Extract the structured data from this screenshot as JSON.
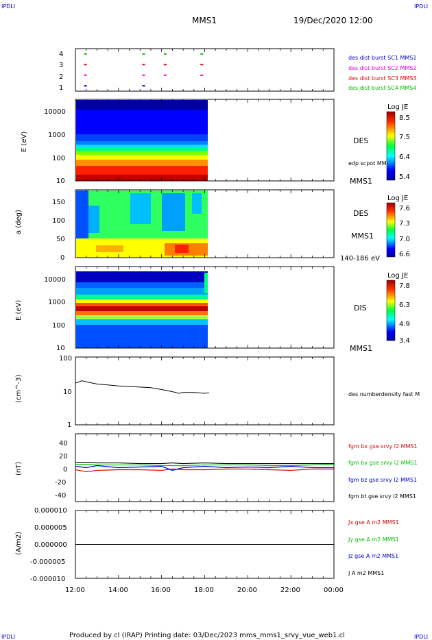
{
  "corner_labels": {
    "top_left": "IPDLI",
    "top_right": "IPDLI",
    "bottom_left": "IPDLI",
    "bottom_right": "IPDLI"
  },
  "header": {
    "spacecraft": "MMS1",
    "date_time": "19/Dec/2020 12:00"
  },
  "footer": "Produced by cl (IRAP)   Printing date: 03/Dec/2023   mms_mms1_srvy_vue_web1.cl",
  "colors": {
    "blue": "#0000dd",
    "magenta": "#dd00dd",
    "red": "#dd0000",
    "green": "#00bb00",
    "black": "#000000"
  },
  "chart_data": [
    {
      "type": "scatter",
      "title": "",
      "yticks": [
        "1",
        "2",
        "3",
        "4"
      ],
      "ylim": [
        0.5,
        4.5
      ],
      "legend": [
        "des dist burst SC1 MMS1",
        "des dist burst SC2 MMS2",
        "des dist burst SC3 MMS3",
        "des dist burst SC4 MMS4"
      ],
      "series": [
        {
          "name": "des dist burst SC1 MMS1",
          "y": 1,
          "x_hours": [
            12.4,
            15.1
          ]
        },
        {
          "name": "des dist burst SC2 MMS2",
          "y": 2,
          "x_hours": [
            12.4,
            15.1,
            16.1,
            17.8
          ]
        },
        {
          "name": "des dist burst SC3 MMS3",
          "y": 3,
          "x_hours": [
            12.4,
            15.1,
            16.1,
            17.8
          ]
        },
        {
          "name": "des dist burst SC4 MMS4",
          "y": 4,
          "x_hours": [
            12.4,
            15.1,
            16.1,
            17.8
          ]
        }
      ]
    },
    {
      "type": "heatmap",
      "ylabel": "E (eV)",
      "ylim": [
        10,
        30000
      ],
      "yscale": "log",
      "yticks": [
        "10",
        "100",
        "1000",
        "10000"
      ],
      "data_end_hour": 18.2,
      "right_labels": [
        "DES",
        "edp scpot MMS1",
        "MMS1"
      ],
      "colorbar": {
        "title": "Log JE",
        "ticks": [
          "8.5",
          "7.5",
          "6.4",
          "5.4"
        ]
      }
    },
    {
      "type": "heatmap",
      "ylabel": "a (deg)",
      "ylim": [
        0,
        180
      ],
      "yticks": [
        "0",
        "50",
        "100",
        "150"
      ],
      "data_end_hour": 18.2,
      "right_labels": [
        "DES",
        "MMS1",
        "140-186 eV"
      ],
      "colorbar": {
        "title": "Log JE",
        "ticks": [
          "7.6",
          "7.3",
          "7.0",
          "6.6"
        ]
      }
    },
    {
      "type": "heatmap",
      "ylabel": "E (eV)",
      "ylim": [
        10,
        30000
      ],
      "yscale": "log",
      "yticks": [
        "10",
        "100",
        "1000",
        "10000"
      ],
      "data_end_hour": 18.2,
      "right_labels": [
        "DIS",
        "MMS1"
      ],
      "colorbar": {
        "title": "Log JE",
        "ticks": [
          "7.8",
          "6.3",
          "4.9",
          "3.4"
        ]
      }
    },
    {
      "type": "line",
      "ylabel": "(cm^-3)",
      "yscale": "log",
      "ylim": [
        1,
        100
      ],
      "yticks": [
        "1",
        "10",
        "100"
      ],
      "legend": [
        "des numberdensity fast M"
      ],
      "series": [
        {
          "name": "des numberdensity fast M",
          "x_hours": [
            12.0,
            12.3,
            12.6,
            13.0,
            13.5,
            14.0,
            14.5,
            15.0,
            15.5,
            16.0,
            16.5,
            16.8,
            17.0,
            17.5,
            18.0,
            18.2
          ],
          "y": [
            17,
            20,
            18,
            16,
            15,
            14,
            13.5,
            13,
            12.5,
            11,
            9.5,
            8.5,
            9,
            9,
            8.5,
            8.8
          ]
        }
      ]
    },
    {
      "type": "line",
      "ylabel": "(nT)",
      "ylim": [
        -50,
        50
      ],
      "yticks": [
        "-40",
        "-20",
        "0",
        "20",
        "40"
      ],
      "legend": [
        "fgm bx gse srvy l2 MMS1",
        "fgm by gse srvy l2 MMS1",
        "fgm bz gse srvy l2 MMS1",
        "fgm bt gse srvy l2 MMS1"
      ],
      "series": [
        {
          "name": "fgm bx gse srvy l2 MMS1",
          "x_hours": [
            12,
            12.5,
            13,
            14,
            15,
            16,
            16.5,
            17,
            18,
            19,
            20,
            21,
            22,
            23,
            24
          ],
          "y": [
            -3,
            -6,
            -4,
            -3,
            -3,
            -4,
            -2,
            -3,
            -3,
            -2,
            -2,
            -3,
            -4,
            -2,
            -2
          ]
        },
        {
          "name": "fgm by gse srvy l2 MMS1",
          "x_hours": [
            12,
            12.5,
            13,
            14,
            15,
            16,
            16.5,
            17,
            18,
            19,
            20,
            21,
            22,
            23,
            24
          ],
          "y": [
            5,
            5,
            4,
            4,
            4,
            3,
            3,
            3,
            4,
            4,
            4,
            3,
            3,
            4,
            5
          ]
        },
        {
          "name": "fgm bz gse srvy l2 MMS1",
          "x_hours": [
            12,
            12.5,
            13,
            14,
            15,
            16,
            16.5,
            17,
            18,
            19,
            20,
            21,
            22,
            23,
            24
          ],
          "y": [
            2,
            0,
            3,
            0,
            1,
            2,
            -4,
            0,
            2,
            0,
            1,
            0,
            2,
            0,
            0
          ]
        },
        {
          "name": "fgm bt gse srvy l2 MMS1",
          "x_hours": [
            12,
            12.5,
            13,
            14,
            15,
            16,
            16.5,
            17,
            18,
            19,
            20,
            21,
            22,
            23,
            24
          ],
          "y": [
            8,
            8,
            7,
            7,
            6,
            6,
            7,
            6,
            7,
            6,
            6,
            6,
            6,
            6,
            6
          ]
        }
      ]
    },
    {
      "type": "line",
      "ylabel": "(A/m2)",
      "ylim": [
        -1e-05,
        1e-05
      ],
      "yticks": [
        "-0.000010",
        "-0.000005",
        "0.000000",
        "0.000005",
        "0.000010"
      ],
      "legend": [
        "Jx gse A m2 MMS1",
        "Jy gse A m2 MMS1",
        "Jz gse A m2 MMS1",
        "J A m2 MMS1"
      ],
      "series": [
        {
          "name": "J A m2 MMS1",
          "x_hours": [
            12,
            24
          ],
          "y": [
            0,
            0
          ]
        }
      ],
      "xticks": [
        "12:00",
        "14:00",
        "16:00",
        "18:00",
        "20:00",
        "22:00",
        "00:00"
      ],
      "xlim_hours": [
        12,
        24
      ]
    }
  ]
}
